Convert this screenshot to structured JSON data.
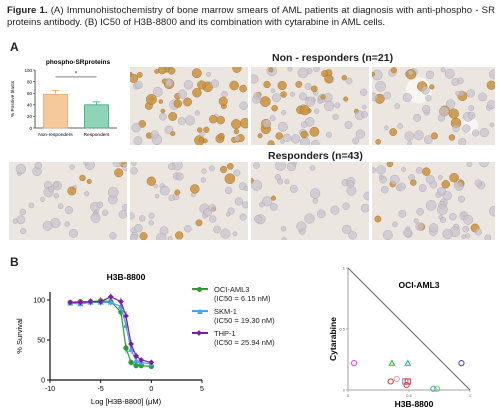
{
  "caption": {
    "fig_label": "Figure 1.",
    "text": "(A) Immunohistochemistry of bone marrow smears of AML patients at diagnosis with anti-phospho - SR proteins antibody. (B) IC50 of H3B-8800 and its combination with cytarabine in AML cells."
  },
  "panel_a": {
    "label": "A",
    "non_responders_title": "Non - responders (n=21)",
    "responders_title": "Responders (n=43)",
    "stain_color": "#c9903d"
  },
  "panel_b": {
    "label": "B"
  },
  "legend": [
    {
      "name": "OCI-AML3",
      "ic50": "(IC50 = 6.15 nM)",
      "color": "#2e9b3a",
      "marker": "circle"
    },
    {
      "name": "SKM-1",
      "ic50": "(IC50 = 19.30 nM)",
      "color": "#4aa3e0",
      "marker": "triangle"
    },
    {
      "name": "THP-1",
      "ic50": "(IC50 = 25.94 nM)",
      "color": "#7a1fa8",
      "marker": "diamond"
    }
  ],
  "chart_data": [
    {
      "type": "bar",
      "title": "phospho-SRproteins",
      "ylabel": "% Positive blasts",
      "categories": [
        "Non-responders",
        "Responders"
      ],
      "values": [
        58,
        40
      ],
      "errors": [
        7,
        5
      ],
      "ylim": [
        0,
        100
      ],
      "yticks": [
        0,
        20,
        40,
        60,
        80,
        100
      ],
      "colors": [
        "#f5c99b",
        "#8fd3b8"
      ],
      "edge_colors": [
        "#e8a86a",
        "#3aa87c"
      ],
      "annotation": "*"
    },
    {
      "type": "line",
      "title": "H3B-8800",
      "xlabel": "Log [H3B-8800] (μM)",
      "ylabel": "% Survival",
      "xlim": [
        -10,
        5
      ],
      "ylim": [
        0,
        110
      ],
      "xticks": [
        -10,
        -5,
        0,
        5
      ],
      "yticks": [
        0,
        50,
        100
      ],
      "series": [
        {
          "name": "OCI-AML3",
          "color": "#2e9b3a",
          "marker": "circle",
          "x": [
            -8,
            -7,
            -6,
            -5,
            -4,
            -3,
            -2.5,
            -2,
            -1.5,
            -1,
            0
          ],
          "y": [
            97,
            98,
            98,
            99,
            98,
            85,
            40,
            22,
            18,
            18,
            17
          ],
          "err": [
            3,
            3,
            3,
            5,
            4,
            5,
            6,
            4,
            3,
            3,
            3
          ]
        },
        {
          "name": "SKM-1",
          "color": "#4aa3e0",
          "marker": "triangle",
          "x": [
            -8,
            -7,
            -6,
            -5,
            -4,
            -3,
            -2.5,
            -2,
            -1.5,
            -1,
            0
          ],
          "y": [
            96,
            95,
            97,
            97,
            97,
            92,
            68,
            38,
            24,
            22,
            20
          ],
          "err": [
            3,
            3,
            4,
            4,
            4,
            5,
            6,
            5,
            4,
            3,
            3
          ]
        },
        {
          "name": "THP-1",
          "color": "#7a1fa8",
          "marker": "diamond",
          "x": [
            -8,
            -7,
            -6,
            -5,
            -4,
            -3,
            -2.5,
            -2,
            -1.5,
            -1,
            0
          ],
          "y": [
            97,
            97,
            98,
            98,
            104,
            98,
            80,
            45,
            30,
            25,
            22
          ],
          "err": [
            3,
            3,
            4,
            4,
            4,
            5,
            6,
            5,
            4,
            3,
            3
          ]
        }
      ]
    },
    {
      "type": "scatter",
      "title": "OCI-AML3",
      "xlabel": "H3B-8800",
      "ylabel": "Cytarabine",
      "xlim": [
        0,
        1
      ],
      "ylim": [
        0,
        1
      ],
      "xticks": [
        0,
        0.5,
        1
      ],
      "yticks": [
        0,
        0.5,
        1
      ],
      "xticklabels": [
        "0",
        "0.5",
        "1"
      ],
      "yticklabels": [
        "0",
        "0.5",
        "1"
      ],
      "isobole": [
        [
          0,
          1
        ],
        [
          1,
          0
        ]
      ],
      "points": [
        {
          "x": 0.05,
          "y": 0.22,
          "color": "#e040e0",
          "marker": "circle"
        },
        {
          "x": 0.35,
          "y": 0.07,
          "color": "#e03030",
          "marker": "circle"
        },
        {
          "x": 0.36,
          "y": 0.22,
          "color": "#30b030",
          "marker": "triangle"
        },
        {
          "x": 0.4,
          "y": 0.09,
          "color": "#e0a0a0",
          "marker": "circle"
        },
        {
          "x": 0.47,
          "y": 0.07,
          "color": "#6080e0",
          "marker": "square"
        },
        {
          "x": 0.49,
          "y": 0.07,
          "color": "#e03030",
          "marker": "square"
        },
        {
          "x": 0.49,
          "y": 0.22,
          "color": "#30a0a0",
          "marker": "triangle"
        },
        {
          "x": 0.48,
          "y": 0.04,
          "color": "#e04040",
          "marker": "circle"
        },
        {
          "x": 0.7,
          "y": 0.01,
          "color": "#30b0b0",
          "marker": "circle"
        },
        {
          "x": 0.73,
          "y": 0.01,
          "color": "#60d060",
          "marker": "circle"
        },
        {
          "x": 0.93,
          "y": 0.22,
          "color": "#4040d0",
          "marker": "circle"
        }
      ]
    }
  ]
}
